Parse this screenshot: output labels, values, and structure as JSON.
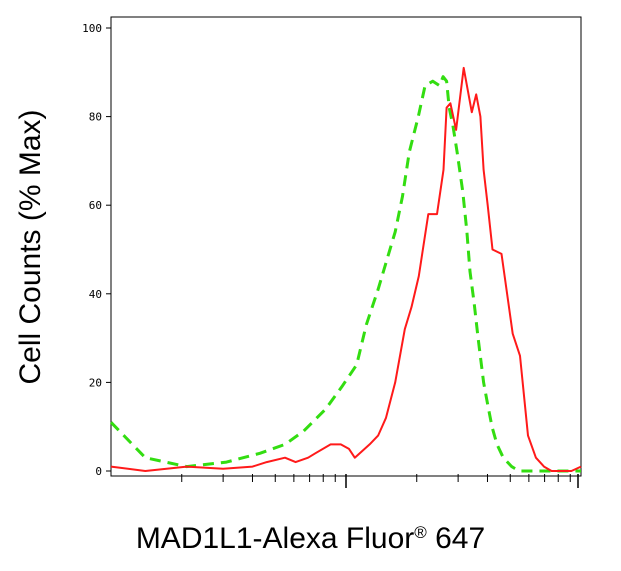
{
  "chart_data": {
    "type": "line",
    "xlabel_main": "MAD1L1-Alexa Fluor",
    "xlabel_sup": "®",
    "xlabel_tail": " 647",
    "ylabel": "Cell Counts (% Max)",
    "ylim": [
      0,
      100
    ],
    "y_ticks": [
      "0",
      "20",
      "40",
      "60",
      "80",
      "100"
    ],
    "x_scale": "log",
    "grid": false,
    "series": [
      {
        "color": "#33dd11",
        "style": "dashed",
        "x": [
          1.0,
          1.4,
          2.1,
          3.1,
          4.3,
          5.5,
          6.6,
          8.2,
          9.6,
          11.1,
          12.2,
          13.7,
          16.2,
          17.4,
          18.6,
          20.3,
          21.7,
          23.4,
          25.0,
          25.9,
          26.8,
          27.5,
          28.5,
          29.7,
          31.4,
          32.7,
          33.7,
          35.1,
          36.5,
          38.5,
          40.1,
          41.8,
          43.9,
          46.7,
          50.7,
          54.5,
          58.5,
          62.3,
          64.8,
          68.7,
          75.0,
          80.0,
          100.0
        ],
        "values": [
          11,
          3,
          1,
          2,
          4,
          6,
          9,
          14,
          19,
          24,
          33,
          41,
          54,
          62,
          72,
          80,
          87,
          88,
          87,
          89,
          88,
          82,
          78,
          72,
          63,
          54,
          45,
          38,
          30,
          20,
          15,
          10,
          6,
          3,
          1,
          0,
          0,
          0,
          0,
          0,
          0,
          0,
          0
        ]
      },
      {
        "color": "#ff1a1a",
        "style": "solid",
        "x": [
          1.0,
          1.4,
          2.1,
          3.0,
          4.0,
          4.6,
          5.5,
          6.1,
          6.9,
          7.4,
          8.6,
          9.5,
          10.3,
          10.9,
          12.6,
          13.7,
          14.8,
          16.2,
          17.8,
          19.0,
          20.4,
          22.4,
          24.4,
          26.0,
          26.8,
          27.8,
          29.4,
          31.7,
          34.3,
          35.8,
          37.3,
          38.5,
          40.1,
          42.0,
          45.9,
          51.2,
          55.0,
          59.5,
          64.3,
          69.6,
          75.0,
          82.0,
          91.0,
          100.0
        ],
        "values": [
          1,
          0,
          1,
          0.5,
          1,
          2,
          3,
          2,
          3,
          4,
          6,
          6,
          5,
          3,
          6,
          8,
          12,
          20,
          32,
          37,
          44,
          58,
          58,
          68,
          82,
          83,
          77,
          91,
          81,
          85,
          80,
          68,
          60,
          50,
          49,
          31,
          26,
          8,
          3,
          1,
          0,
          0,
          0,
          1
        ]
      }
    ]
  }
}
